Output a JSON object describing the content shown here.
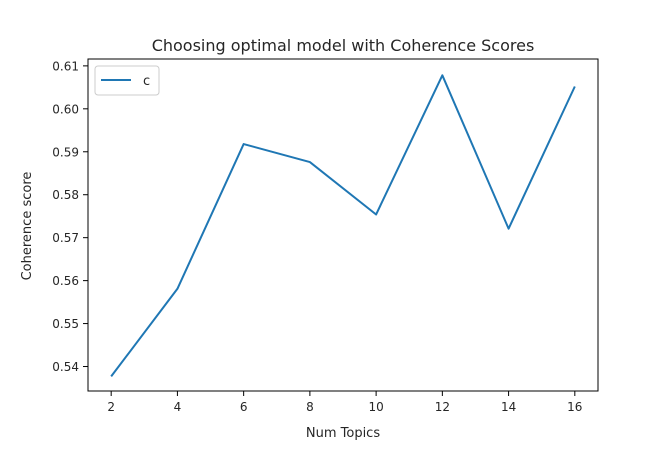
{
  "chart_data": {
    "type": "line",
    "title": "Choosing optimal model with Coherence Scores",
    "xlabel": "Num Topics",
    "ylabel": "Coherence score",
    "x": [
      2,
      4,
      6,
      8,
      10,
      12,
      14,
      16
    ],
    "xticks": [
      "2",
      "4",
      "6",
      "8",
      "10",
      "12",
      "14",
      "16"
    ],
    "xlim": [
      1.3,
      16.7
    ],
    "yticks": [
      "0.54",
      "0.55",
      "0.56",
      "0.57",
      "0.58",
      "0.59",
      "0.60",
      "0.61"
    ],
    "ytick_values": [
      0.54,
      0.55,
      0.56,
      0.57,
      0.58,
      0.59,
      0.6,
      0.61
    ],
    "ylim": [
      0.5343,
      0.6116
    ],
    "series": [
      {
        "name": "c",
        "color": "#1f77b4",
        "values": [
          0.5377,
          0.5581,
          0.5918,
          0.5876,
          0.5754,
          0.6078,
          0.5721,
          0.6052
        ]
      }
    ],
    "legend_position": "upper-left",
    "grid": false
  }
}
